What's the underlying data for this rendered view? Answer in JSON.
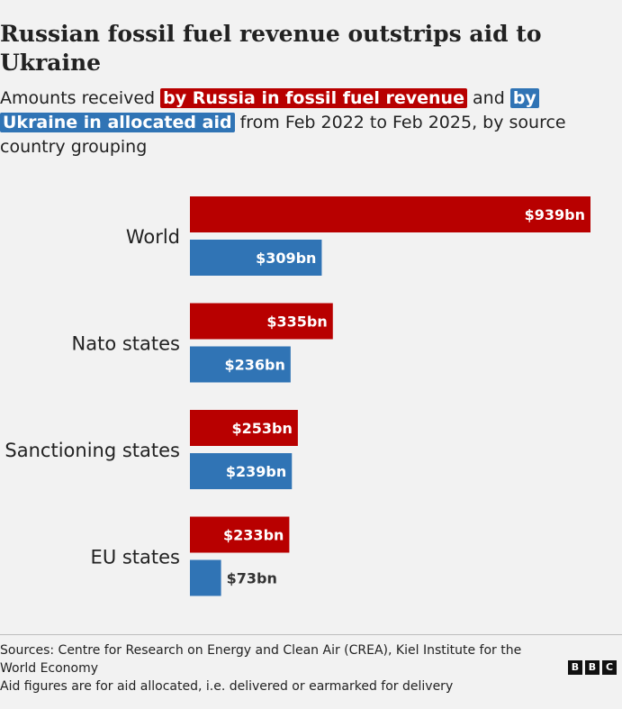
{
  "title": "Russian fossil fuel revenue outstrips aid to Ukraine",
  "subtitle": {
    "prefix": "Amounts received ",
    "russia_highlight": "by Russia in fossil fuel revenue",
    "middle": " and ",
    "ukraine_highlight": "by Ukraine in allocated aid",
    "suffix": " from Feb 2022 to Feb 2025, by source country grouping"
  },
  "colors": {
    "russia": "#b80000",
    "ukraine": "#3074b5"
  },
  "chart_data": {
    "type": "bar",
    "orientation": "horizontal",
    "categories": [
      "World",
      "Nato states",
      "Sanctioning states",
      "EU states"
    ],
    "series": [
      {
        "name": "by Russia in fossil fuel revenue",
        "values": [
          939,
          335,
          253,
          233
        ],
        "labels": [
          "$939bn",
          "$335bn",
          "$253bn",
          "$233bn"
        ]
      },
      {
        "name": "by Ukraine in allocated aid",
        "values": [
          309,
          236,
          239,
          73
        ],
        "labels": [
          "$309bn",
          "$236bn",
          "$239bn",
          "$73bn"
        ]
      }
    ],
    "unit": "$bn",
    "xlim": [
      0,
      939
    ]
  },
  "footer": {
    "sources": "Sources: Centre for Research on Energy and Clean Air (CREA), Kiel Institute for the World Economy",
    "note": "Aid figures are for aid allocated, i.e. delivered or earmarked for delivery"
  },
  "logo": {
    "letters": [
      "B",
      "B",
      "C"
    ]
  }
}
